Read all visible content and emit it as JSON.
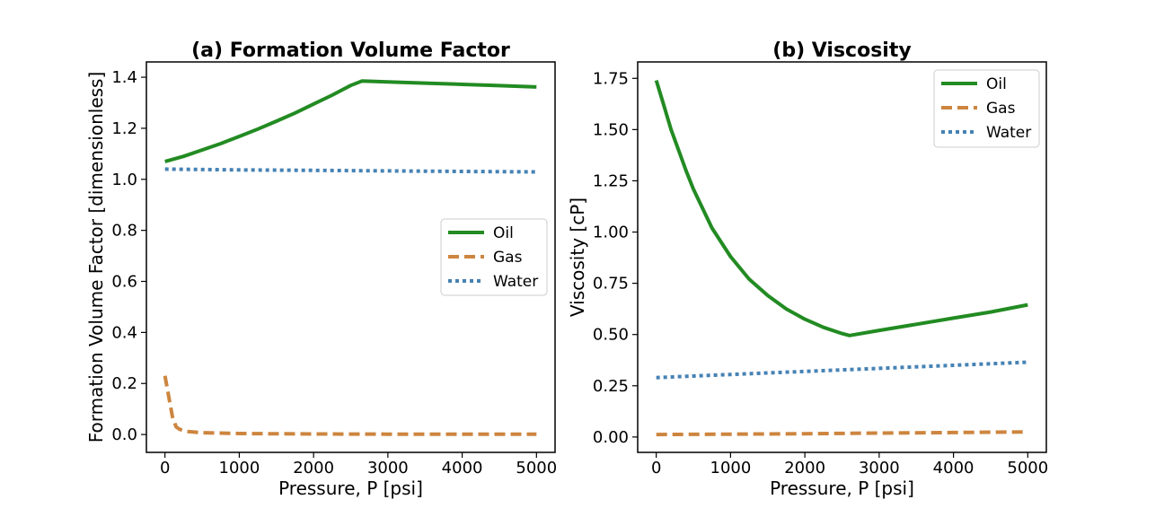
{
  "chart_data": [
    {
      "type": "line",
      "title": "(a) Formation Volume Factor",
      "xlabel": "Pressure, P [psi]",
      "ylabel": "Formation Volume Factor [dimensionless]",
      "xlim": [
        -250,
        5250
      ],
      "ylim": [
        -0.07,
        1.46
      ],
      "xticks": [
        0,
        1000,
        2000,
        3000,
        4000,
        5000
      ],
      "xtick_labels": [
        "0",
        "1000",
        "2000",
        "3000",
        "4000",
        "5000"
      ],
      "yticks": [
        0.0,
        0.2,
        0.4,
        0.6,
        0.8,
        1.0,
        1.2,
        1.4
      ],
      "ytick_labels": [
        "0.0",
        "0.2",
        "0.4",
        "0.6",
        "0.8",
        "1.0",
        "1.2",
        "1.4"
      ],
      "legend_position": "center-right",
      "grid": false,
      "series": [
        {
          "name": "Oil",
          "color": "#228b22",
          "style": "solid",
          "x": [
            0,
            250,
            500,
            750,
            1000,
            1250,
            1500,
            1750,
            2000,
            2250,
            2500,
            2650,
            3000,
            3500,
            4000,
            4500,
            5000
          ],
          "y": [
            1.07,
            1.09,
            1.115,
            1.14,
            1.168,
            1.197,
            1.228,
            1.26,
            1.295,
            1.33,
            1.368,
            1.385,
            1.382,
            1.377,
            1.372,
            1.367,
            1.362
          ]
        },
        {
          "name": "Gas",
          "color": "#cd853f",
          "style": "dashed",
          "x": [
            0,
            50,
            100,
            150,
            200,
            300,
            500,
            1000,
            2000,
            3000,
            4000,
            5000
          ],
          "y": [
            0.23,
            0.15,
            0.07,
            0.03,
            0.02,
            0.012,
            0.007,
            0.004,
            0.002,
            0.0015,
            0.001,
            0.001
          ]
        },
        {
          "name": "Water",
          "color": "#4682b4",
          "style": "dotted",
          "x": [
            0,
            1000,
            2000,
            3000,
            4000,
            5000
          ],
          "y": [
            1.04,
            1.037,
            1.035,
            1.033,
            1.031,
            1.029
          ]
        }
      ]
    },
    {
      "type": "line",
      "title": "(b) Viscosity",
      "xlabel": "Pressure, P [psi]",
      "ylabel": "Viscosity [cP]",
      "xlim": [
        -250,
        5250
      ],
      "ylim": [
        -0.075,
        1.83
      ],
      "xticks": [
        0,
        1000,
        2000,
        3000,
        4000,
        5000
      ],
      "xtick_labels": [
        "0",
        "1000",
        "2000",
        "3000",
        "4000",
        "5000"
      ],
      "yticks": [
        0.0,
        0.25,
        0.5,
        0.75,
        1.0,
        1.25,
        1.5,
        1.75
      ],
      "ytick_labels": [
        "0.00",
        "0.25",
        "0.50",
        "0.75",
        "1.00",
        "1.25",
        "1.50",
        "1.75"
      ],
      "legend_position": "top-right",
      "grid": false,
      "series": [
        {
          "name": "Oil",
          "color": "#228b22",
          "style": "solid",
          "x": [
            0,
            100,
            200,
            300,
            400,
            500,
            750,
            1000,
            1250,
            1500,
            1750,
            2000,
            2250,
            2500,
            2600,
            3000,
            3500,
            4000,
            4500,
            5000
          ],
          "y": [
            1.74,
            1.62,
            1.5,
            1.4,
            1.3,
            1.21,
            1.02,
            0.88,
            0.77,
            0.69,
            0.625,
            0.575,
            0.535,
            0.505,
            0.495,
            0.52,
            0.55,
            0.58,
            0.61,
            0.645
          ]
        },
        {
          "name": "Gas",
          "color": "#cd853f",
          "style": "dashed",
          "x": [
            0,
            1000,
            2000,
            3000,
            4000,
            5000
          ],
          "y": [
            0.012,
            0.014,
            0.016,
            0.019,
            0.022,
            0.025
          ]
        },
        {
          "name": "Water",
          "color": "#4682b4",
          "style": "dotted",
          "x": [
            0,
            1000,
            2000,
            3000,
            4000,
            5000
          ],
          "y": [
            0.29,
            0.305,
            0.32,
            0.335,
            0.35,
            0.365
          ]
        }
      ]
    }
  ]
}
